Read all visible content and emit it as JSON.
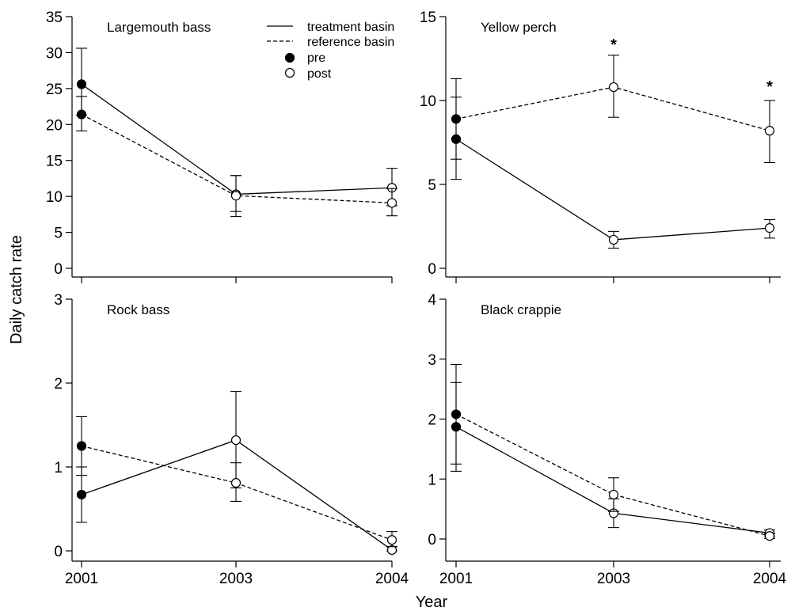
{
  "figure": {
    "ylabel": "Daily catch rate",
    "xlabel": "Year",
    "legend": [
      {
        "label": "treatment basin",
        "kind": "solid-line"
      },
      {
        "label": "reference basin",
        "kind": "dashed-line"
      },
      {
        "label": "pre",
        "kind": "filled-circle"
      },
      {
        "label": "post",
        "kind": "open-circle"
      }
    ]
  },
  "chart_data": [
    {
      "type": "line",
      "title": "Largemouth bass",
      "categories": [
        "2001",
        "2003",
        "2004"
      ],
      "ylim": [
        0,
        35
      ],
      "yticks": [
        0,
        5,
        10,
        15,
        20,
        25,
        30,
        35
      ],
      "series": [
        {
          "name": "treatment basin",
          "values": [
            25.6,
            10.3,
            11.2
          ],
          "err_low": [
            21.3,
            7.9,
            8.7
          ],
          "err_high": [
            30.6,
            12.9,
            13.9
          ]
        },
        {
          "name": "reference basin",
          "values": [
            21.4,
            10.1,
            9.1
          ],
          "err_low": [
            19.1,
            7.2,
            7.3
          ],
          "err_high": [
            23.9,
            12.9,
            11.1
          ]
        }
      ],
      "significance": []
    },
    {
      "type": "line",
      "title": "Yellow perch",
      "categories": [
        "2001",
        "2003",
        "2004"
      ],
      "ylim": [
        0,
        15
      ],
      "yticks": [
        0,
        5,
        10,
        15
      ],
      "series": [
        {
          "name": "treatment basin",
          "values": [
            7.7,
            1.7,
            2.4
          ],
          "err_low": [
            5.3,
            1.2,
            1.8
          ],
          "err_high": [
            10.2,
            2.2,
            2.9
          ]
        },
        {
          "name": "reference basin",
          "values": [
            8.9,
            10.8,
            8.2
          ],
          "err_low": [
            6.5,
            9.0,
            6.3
          ],
          "err_high": [
            11.3,
            12.7,
            10.0
          ]
        }
      ],
      "significance": [
        {
          "category": "2003",
          "value": 13.5,
          "label": "*"
        },
        {
          "category": "2004",
          "value": 11.0,
          "label": "*"
        }
      ]
    },
    {
      "type": "line",
      "title": "Rock bass",
      "categories": [
        "2001",
        "2003",
        "2004"
      ],
      "ylim": [
        0,
        3
      ],
      "yticks": [
        0,
        1,
        2,
        3
      ],
      "series": [
        {
          "name": "treatment basin",
          "values": [
            0.67,
            1.32,
            0.01
          ],
          "err_low": [
            0.34,
            0.75,
            0.0
          ],
          "err_high": [
            1.0,
            1.9,
            0.05
          ]
        },
        {
          "name": "reference basin",
          "values": [
            1.25,
            0.81,
            0.13
          ],
          "err_low": [
            0.9,
            0.59,
            0.05
          ],
          "err_high": [
            1.6,
            1.05,
            0.23
          ]
        }
      ],
      "significance": []
    },
    {
      "type": "line",
      "title": "Black crappie",
      "categories": [
        "2001",
        "2003",
        "2004"
      ],
      "ylim": [
        0,
        4
      ],
      "yticks": [
        0,
        1,
        2,
        3,
        4
      ],
      "series": [
        {
          "name": "treatment basin",
          "values": [
            1.87,
            0.43,
            0.1
          ],
          "err_low": [
            1.13,
            0.19,
            0.05
          ],
          "err_high": [
            2.61,
            0.67,
            0.15
          ]
        },
        {
          "name": "reference basin",
          "values": [
            2.08,
            0.74,
            0.05
          ],
          "err_low": [
            1.25,
            0.46,
            0.01
          ],
          "err_high": [
            2.91,
            1.02,
            0.09
          ]
        }
      ],
      "significance": []
    }
  ]
}
